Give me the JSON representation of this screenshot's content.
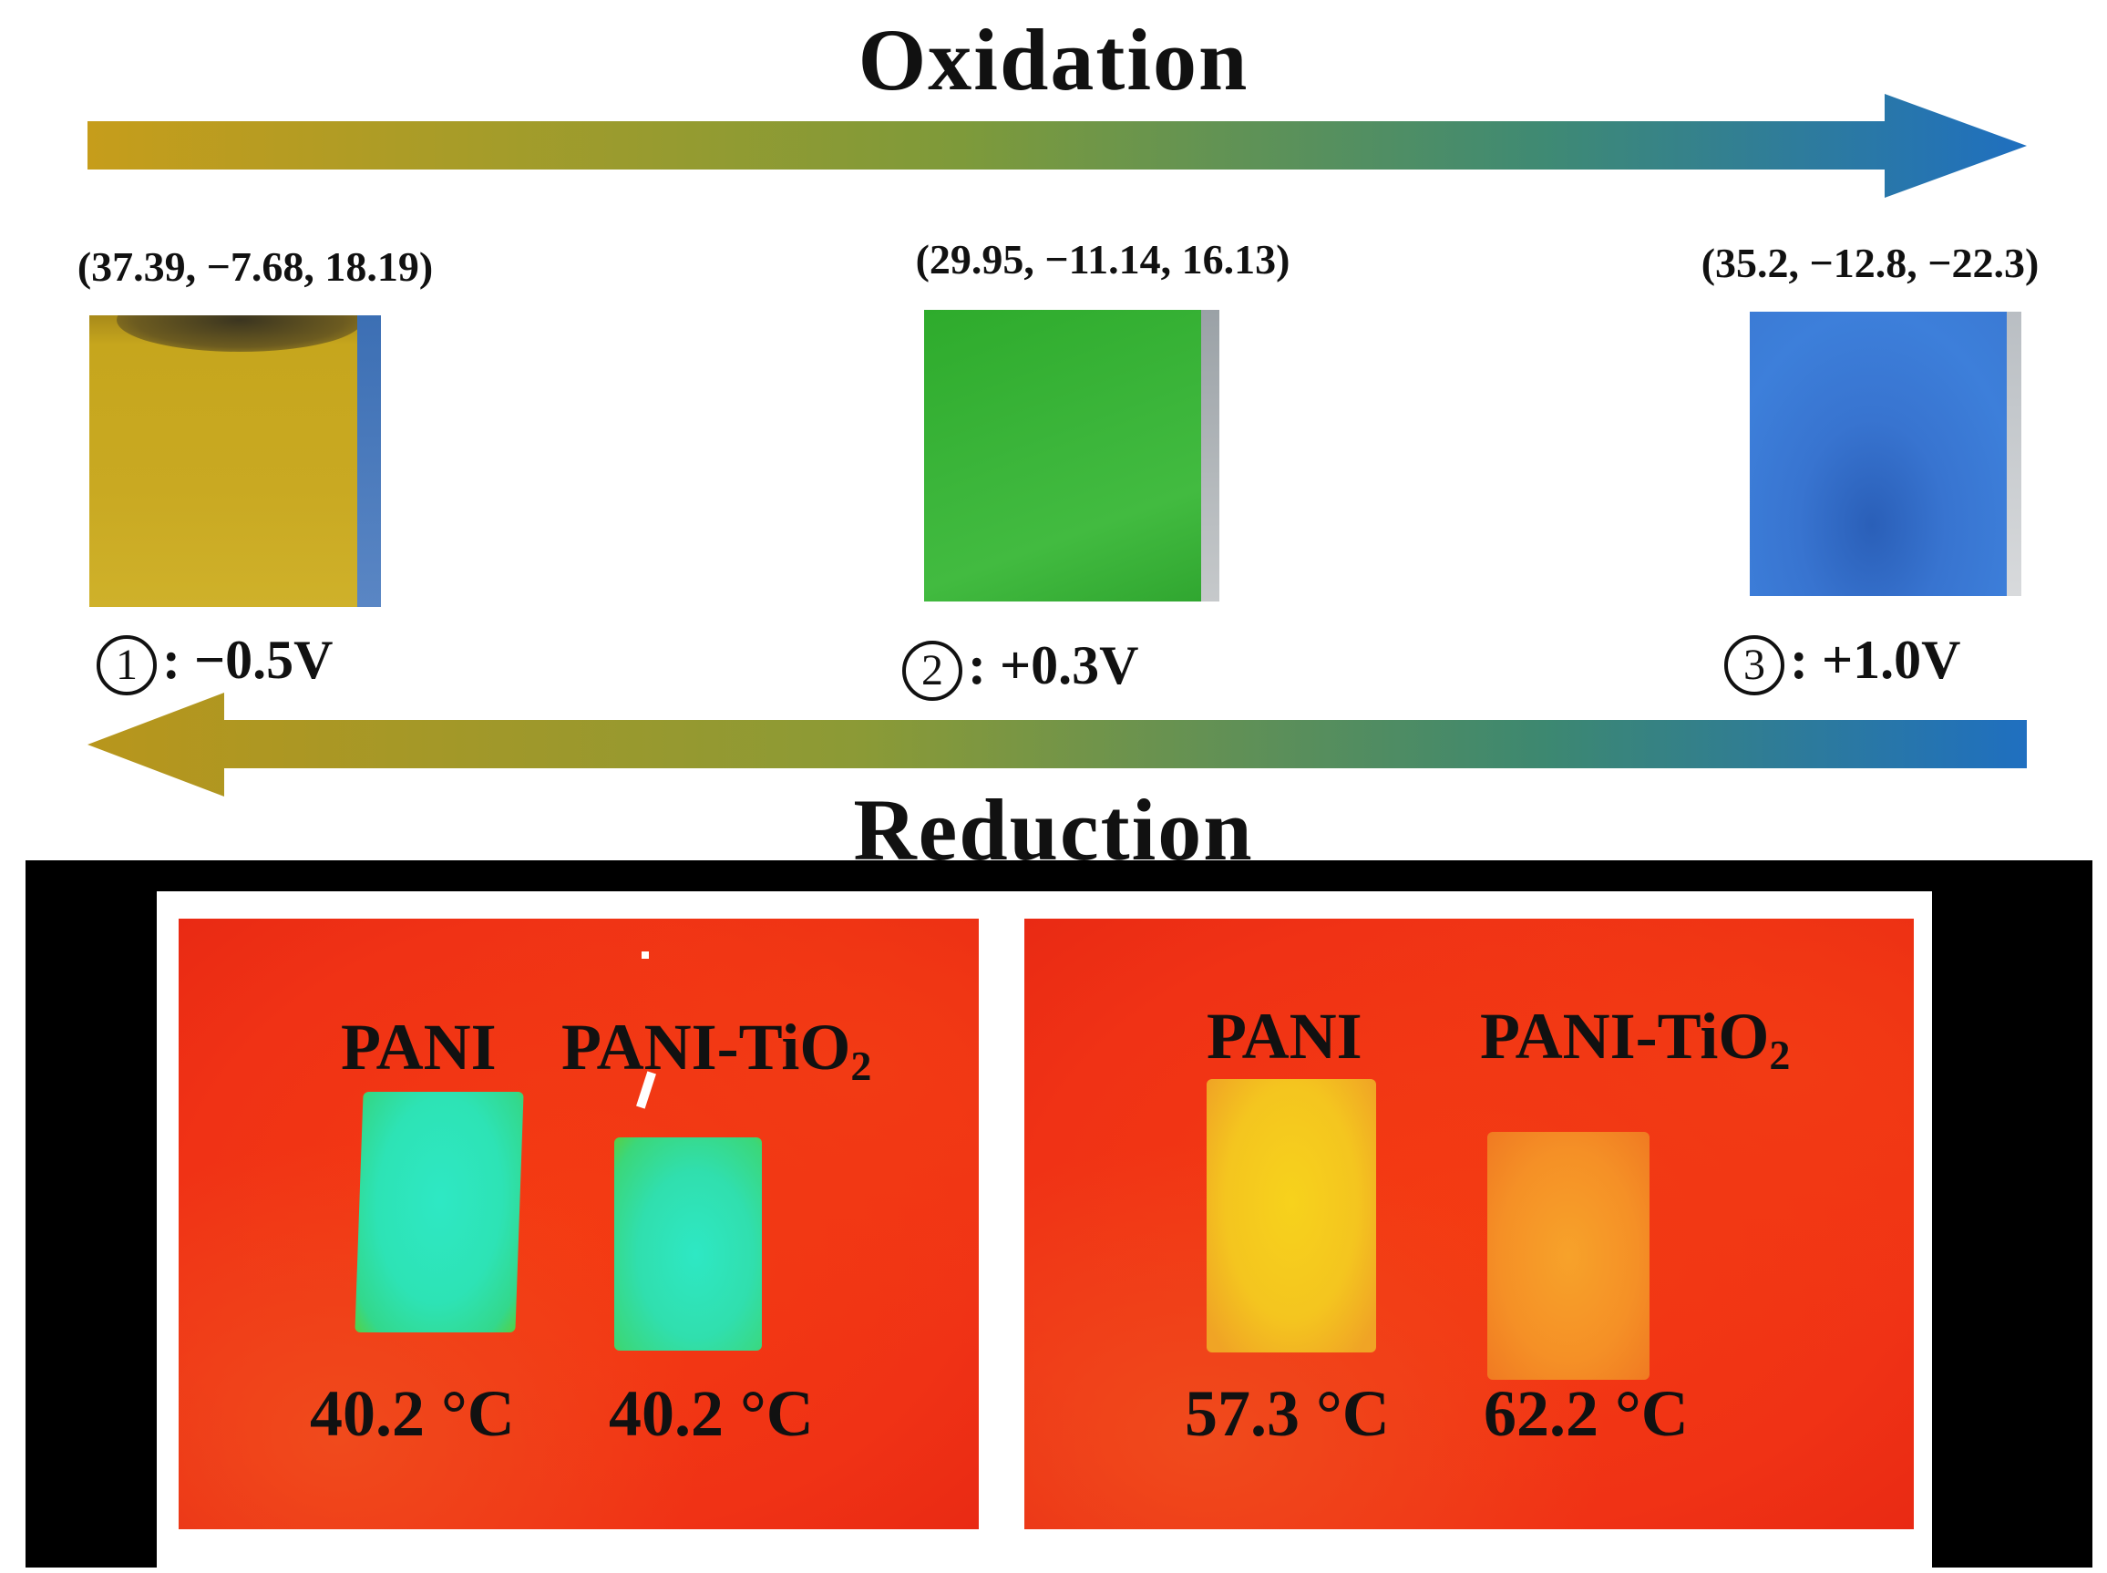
{
  "top": {
    "oxidation_label": "Oxidation",
    "reduction_label": "Reduction",
    "colors": {
      "gold": "#c6a01e",
      "blue": "#1f6fc0"
    }
  },
  "samples": [
    {
      "index": "1",
      "coords": "(37.39,  −7.68, 18.19)",
      "voltage": ":  −0.5V",
      "color": "#c9a922"
    },
    {
      "index": "2",
      "coords": "(29.95,  −11.14, 16.13)",
      "voltage": ":  +0.3V",
      "color": "#3bb53a"
    },
    {
      "index": "3",
      "coords": "(35.2, −12.8, −22.3)",
      "voltage": ":  +1.0V",
      "color": "#3d7fda"
    }
  ],
  "thermal": {
    "left": {
      "label_a": "PANI",
      "label_b_base": "PANI-TiO",
      "label_b_sub": "2",
      "temp_a": "40.2 °C",
      "temp_b": "40.2 °C"
    },
    "right": {
      "label_a": "PANI",
      "label_b_base": "PANI-TiO",
      "label_b_sub": "2",
      "temp_a": "57.3 °C",
      "temp_b": "62.2 °C"
    }
  }
}
